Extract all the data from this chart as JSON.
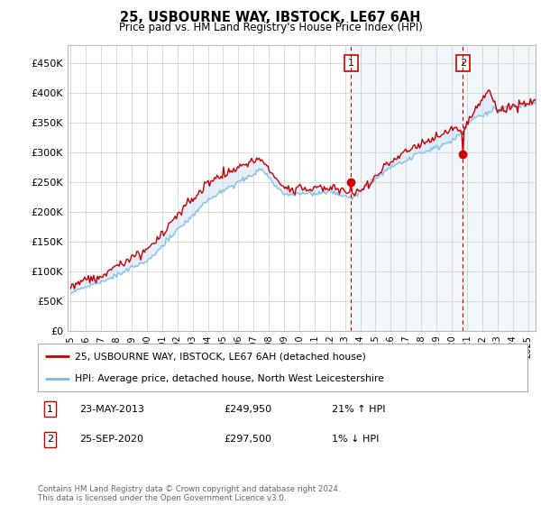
{
  "title": "25, USBOURNE WAY, IBSTOCK, LE67 6AH",
  "subtitle": "Price paid vs. HM Land Registry's House Price Index (HPI)",
  "ylabel_ticks": [
    "£0",
    "£50K",
    "£100K",
    "£150K",
    "£200K",
    "£250K",
    "£300K",
    "£350K",
    "£400K",
    "£450K"
  ],
  "ytick_values": [
    0,
    50000,
    100000,
    150000,
    200000,
    250000,
    300000,
    350000,
    400000,
    450000
  ],
  "ylim": [
    0,
    480000
  ],
  "xlim_start": 1994.8,
  "xlim_end": 2025.5,
  "xticks": [
    1995,
    1996,
    1997,
    1998,
    1999,
    2000,
    2001,
    2002,
    2003,
    2004,
    2005,
    2006,
    2007,
    2008,
    2009,
    2010,
    2011,
    2012,
    2013,
    2014,
    2015,
    2016,
    2017,
    2018,
    2019,
    2020,
    2021,
    2022,
    2023,
    2024,
    2025
  ],
  "sale1_date_x": 2013.39,
  "sale1_price": 249950,
  "sale2_date_x": 2020.73,
  "sale2_price": 297500,
  "sale1_label": "1",
  "sale2_label": "2",
  "legend_line1": "25, USBOURNE WAY, IBSTOCK, LE67 6AH (detached house)",
  "legend_line2": "HPI: Average price, detached house, North West Leicestershire",
  "table_row1": [
    "1",
    "23-MAY-2013",
    "£249,950",
    "21% ↑ HPI"
  ],
  "table_row2": [
    "2",
    "25-SEP-2020",
    "£297,500",
    "1% ↓ HPI"
  ],
  "footer": "Contains HM Land Registry data © Crown copyright and database right 2024.\nThis data is licensed under the Open Government Licence v3.0.",
  "hpi_fill_color": "#cce0f5",
  "hpi_line_color": "#7fb8e0",
  "price_color": "#cc0000",
  "shade_color": "#daeaf7",
  "vline_color": "#cc0000",
  "background_color": "#ffffff",
  "grid_color": "#cccccc",
  "label_box_edge": "#cc0000"
}
